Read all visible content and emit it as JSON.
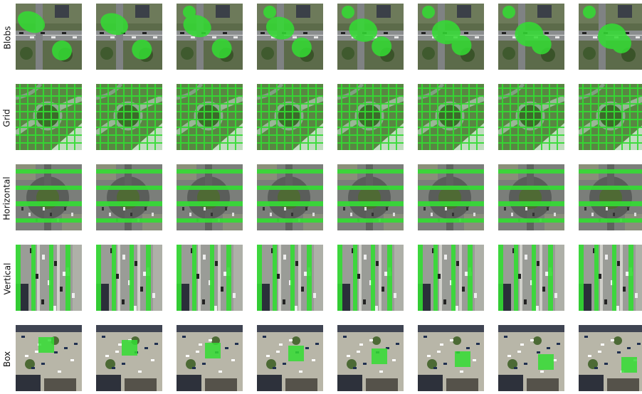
{
  "rows": [
    {
      "label": "Blobs",
      "scene": "street"
    },
    {
      "label": "Grid",
      "scene": "trees"
    },
    {
      "label": "Horizontal",
      "scene": "roundabout"
    },
    {
      "label": "Vertical",
      "scene": "avenue"
    },
    {
      "label": "Box",
      "scene": "plaza"
    }
  ],
  "frames_per_row": 8,
  "overlay_color": "#33dd33"
}
